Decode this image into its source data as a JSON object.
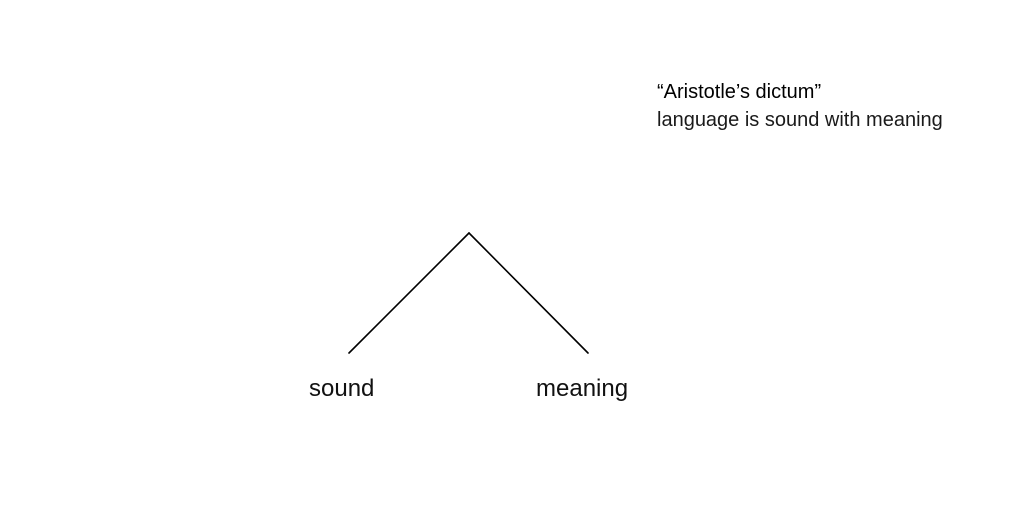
{
  "header": {
    "title": "“Aristotle’s dictum”",
    "subtitle": "language is sound with meaning"
  },
  "tree": {
    "leaves": [
      {
        "label": "sound"
      },
      {
        "label": "meaning"
      }
    ],
    "line_color": "#000000"
  }
}
